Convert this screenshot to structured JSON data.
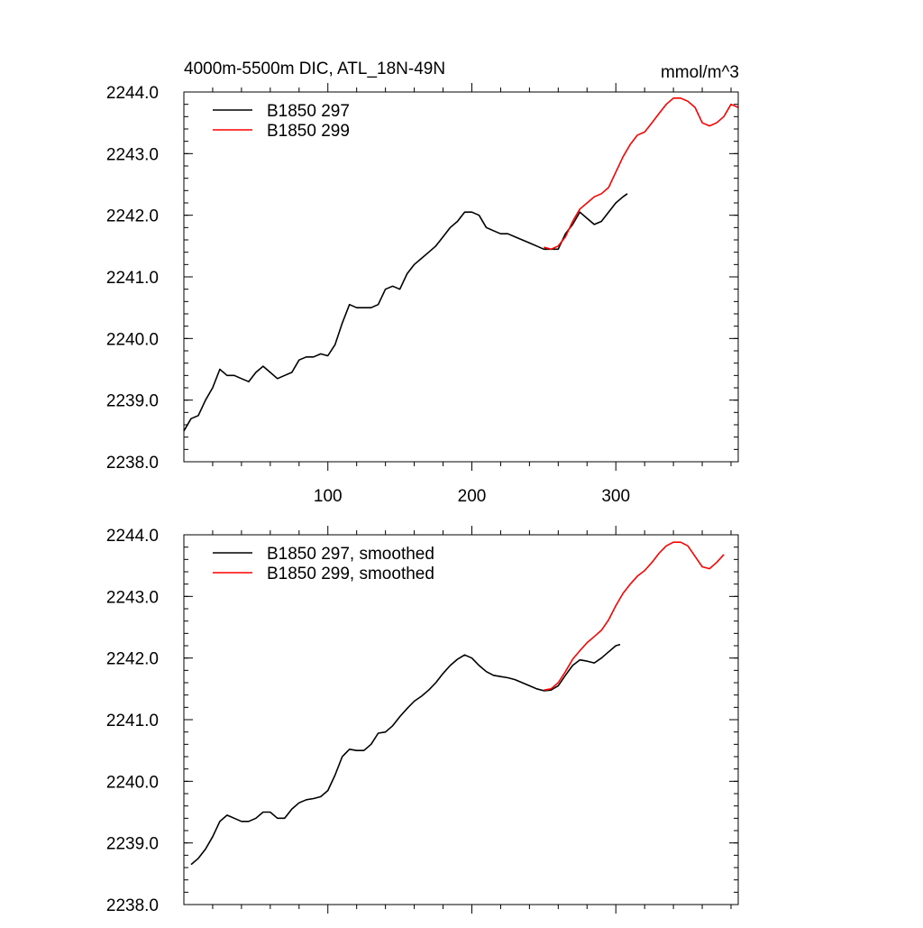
{
  "chart_data": [
    {
      "type": "line",
      "title": "4000m-5500m DIC, ATL_18N-49N",
      "units": "mmol/m^3",
      "xlim": [
        0,
        385
      ],
      "ylim": [
        2238.0,
        2244.0
      ],
      "xticks": [
        100,
        200,
        300
      ],
      "yticks": [
        2238.0,
        2239.0,
        2240.0,
        2241.0,
        2242.0,
        2243.0,
        2244.0
      ],
      "ytick_labels": [
        "2238.0",
        "2239.0",
        "2240.0",
        "2241.0",
        "2242.0",
        "2243.0",
        "2244.0"
      ],
      "xtick_labels": [
        "100",
        "200",
        "300"
      ],
      "legend_position": "top-left",
      "series": [
        {
          "name": "B1850 297",
          "color": "#000000",
          "x": [
            0,
            5,
            10,
            15,
            20,
            25,
            30,
            35,
            40,
            45,
            50,
            55,
            60,
            65,
            70,
            75,
            80,
            85,
            90,
            95,
            100,
            105,
            110,
            115,
            120,
            125,
            130,
            135,
            140,
            145,
            150,
            155,
            160,
            165,
            170,
            175,
            180,
            185,
            190,
            195,
            200,
            205,
            210,
            215,
            220,
            225,
            230,
            235,
            240,
            245,
            250,
            255,
            260,
            265,
            270,
            275,
            280,
            285,
            290,
            295,
            300,
            305,
            308
          ],
          "y": [
            2238.5,
            2238.7,
            2238.75,
            2239.0,
            2239.2,
            2239.5,
            2239.4,
            2239.4,
            2239.35,
            2239.3,
            2239.45,
            2239.55,
            2239.45,
            2239.35,
            2239.4,
            2239.45,
            2239.65,
            2239.7,
            2239.7,
            2239.75,
            2239.72,
            2239.9,
            2240.25,
            2240.55,
            2240.5,
            2240.5,
            2240.5,
            2240.55,
            2240.8,
            2240.85,
            2240.8,
            2241.05,
            2241.2,
            2241.3,
            2241.4,
            2241.5,
            2241.65,
            2241.8,
            2241.9,
            2242.05,
            2242.05,
            2242.0,
            2241.8,
            2241.75,
            2241.7,
            2241.7,
            2241.65,
            2241.6,
            2241.55,
            2241.5,
            2241.45,
            2241.45,
            2241.45,
            2241.7,
            2241.85,
            2242.05,
            2241.95,
            2241.85,
            2241.9,
            2242.05,
            2242.2,
            2242.3,
            2242.35
          ]
        },
        {
          "name": "B1850 299",
          "color": "#ff0000",
          "x": [
            250,
            255,
            260,
            265,
            270,
            275,
            280,
            285,
            290,
            295,
            300,
            305,
            310,
            315,
            320,
            325,
            330,
            335,
            340,
            345,
            350,
            355,
            360,
            365,
            370,
            375,
            380,
            385
          ],
          "y": [
            2241.48,
            2241.45,
            2241.5,
            2241.65,
            2241.9,
            2242.1,
            2242.2,
            2242.3,
            2242.35,
            2242.45,
            2242.7,
            2242.95,
            2243.15,
            2243.3,
            2243.35,
            2243.5,
            2243.65,
            2243.8,
            2243.9,
            2243.9,
            2243.85,
            2243.75,
            2243.5,
            2243.45,
            2243.5,
            2243.6,
            2243.8,
            2243.75
          ]
        }
      ]
    },
    {
      "type": "line",
      "title": "",
      "xlim": [
        0,
        385
      ],
      "ylim": [
        2238.0,
        2244.0
      ],
      "xticks": [
        100,
        200,
        300
      ],
      "yticks": [
        2238.0,
        2239.0,
        2240.0,
        2241.0,
        2242.0,
        2243.0,
        2244.0
      ],
      "ytick_labels": [
        "2238.0",
        "2239.0",
        "2240.0",
        "2241.0",
        "2242.0",
        "2243.0",
        "2244.0"
      ],
      "xtick_labels": [],
      "legend_position": "top-left",
      "series": [
        {
          "name": "B1850 297, smoothed",
          "color": "#000000",
          "x": [
            5,
            10,
            15,
            20,
            25,
            30,
            35,
            40,
            45,
            50,
            55,
            60,
            65,
            70,
            75,
            80,
            85,
            90,
            95,
            100,
            105,
            110,
            115,
            120,
            125,
            130,
            135,
            140,
            145,
            150,
            155,
            160,
            165,
            170,
            175,
            180,
            185,
            190,
            195,
            200,
            205,
            210,
            215,
            220,
            225,
            230,
            235,
            240,
            245,
            250,
            255,
            260,
            265,
            270,
            275,
            280,
            285,
            290,
            295,
            300,
            303
          ],
          "y": [
            2238.65,
            2238.75,
            2238.9,
            2239.1,
            2239.35,
            2239.45,
            2239.4,
            2239.35,
            2239.35,
            2239.4,
            2239.5,
            2239.5,
            2239.4,
            2239.4,
            2239.55,
            2239.65,
            2239.7,
            2239.72,
            2239.75,
            2239.85,
            2240.1,
            2240.4,
            2240.52,
            2240.5,
            2240.5,
            2240.6,
            2240.78,
            2240.8,
            2240.9,
            2241.05,
            2241.18,
            2241.3,
            2241.38,
            2241.48,
            2241.6,
            2241.75,
            2241.88,
            2241.98,
            2242.05,
            2242.0,
            2241.88,
            2241.78,
            2241.72,
            2241.7,
            2241.68,
            2241.65,
            2241.6,
            2241.55,
            2241.5,
            2241.47,
            2241.48,
            2241.55,
            2241.72,
            2241.88,
            2241.97,
            2241.95,
            2241.92,
            2242.0,
            2242.1,
            2242.2,
            2242.22
          ]
        },
        {
          "name": "B1850 299, smoothed",
          "color": "#ff0000",
          "x": [
            250,
            255,
            260,
            265,
            270,
            275,
            280,
            285,
            290,
            295,
            300,
            305,
            310,
            315,
            320,
            325,
            330,
            335,
            340,
            345,
            350,
            355,
            360,
            365,
            370,
            375
          ],
          "y": [
            2241.48,
            2241.5,
            2241.6,
            2241.78,
            2241.98,
            2242.12,
            2242.25,
            2242.35,
            2242.45,
            2242.62,
            2242.85,
            2243.05,
            2243.2,
            2243.33,
            2243.42,
            2243.55,
            2243.7,
            2243.82,
            2243.88,
            2243.88,
            2243.82,
            2243.65,
            2243.48,
            2243.45,
            2243.55,
            2243.68
          ]
        }
      ]
    }
  ]
}
